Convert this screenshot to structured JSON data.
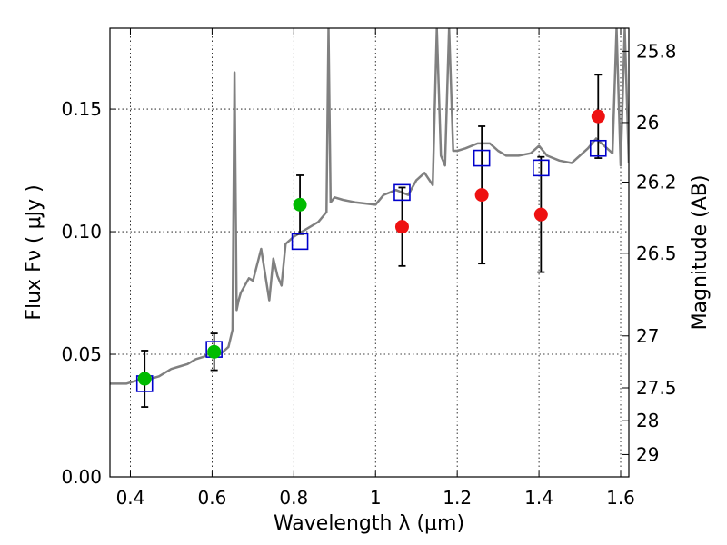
{
  "chart_data": {
    "type": "scatter",
    "xlabel": "Wavelength  λ (μm)",
    "ylabel": "Flux  Fν  ( μJy )",
    "y2label": "Magnitude (AB)",
    "xlim": [
      0.35,
      1.62
    ],
    "ylim": [
      0.0,
      0.183
    ],
    "x_ticks": [
      0.4,
      0.6,
      0.8,
      1.0,
      1.2,
      1.4,
      1.6
    ],
    "x_tick_labels": [
      "0.4",
      "0.6",
      "0.8",
      "1",
      "1.2",
      "1.4",
      "1.6"
    ],
    "y_ticks": [
      0.0,
      0.05,
      0.1,
      0.15
    ],
    "y_tick_labels": [
      "0.00",
      "0.05",
      "0.10",
      "0.15"
    ],
    "y2_ticks": [
      {
        "label": "25.8",
        "flux": 0.1736
      },
      {
        "label": "26",
        "flux": 0.1445
      },
      {
        "label": "26.2",
        "flux": 0.1202
      },
      {
        "label": "26.5",
        "flux": 0.0912
      },
      {
        "label": "27",
        "flux": 0.0575
      },
      {
        "label": "27.5",
        "flux": 0.0363
      },
      {
        "label": "28",
        "flux": 0.0229
      },
      {
        "label": "29",
        "flux": 0.0091
      }
    ],
    "grid": true,
    "colors": {
      "template": "#808080",
      "model_points": "#0000cc",
      "green_points": "#00bb00",
      "red_points": "#ee1111",
      "errorbars": "#000000"
    },
    "series": [
      {
        "type": "line",
        "x": [
          0.35,
          0.37,
          0.39,
          0.41,
          0.43,
          0.45,
          0.47,
          0.49,
          0.5,
          0.52,
          0.54,
          0.56,
          0.58,
          0.6,
          0.62,
          0.64,
          0.65,
          0.655,
          0.66,
          0.665,
          0.67,
          0.68,
          0.69,
          0.7,
          0.72,
          0.74,
          0.75,
          0.76,
          0.77,
          0.78,
          0.8,
          0.82,
          0.84,
          0.86,
          0.88,
          0.885,
          0.89,
          0.9,
          0.92,
          0.95,
          1.0,
          1.02,
          1.05,
          1.08,
          1.1,
          1.12,
          1.14,
          1.15,
          1.16,
          1.17,
          1.18,
          1.19,
          1.2,
          1.22,
          1.25,
          1.28,
          1.3,
          1.32,
          1.35,
          1.38,
          1.4,
          1.42,
          1.45,
          1.48,
          1.5,
          1.52,
          1.54,
          1.56,
          1.58,
          1.59,
          1.6,
          1.61,
          1.62
        ],
        "y": [
          0.038,
          0.038,
          0.038,
          0.039,
          0.04,
          0.04,
          0.041,
          0.043,
          0.044,
          0.045,
          0.046,
          0.048,
          0.049,
          0.051,
          0.05,
          0.053,
          0.06,
          0.165,
          0.068,
          0.072,
          0.075,
          0.078,
          0.081,
          0.08,
          0.093,
          0.072,
          0.089,
          0.082,
          0.078,
          0.095,
          0.098,
          0.1,
          0.102,
          0.104,
          0.108,
          0.183,
          0.112,
          0.114,
          0.113,
          0.112,
          0.111,
          0.115,
          0.117,
          0.115,
          0.121,
          0.124,
          0.119,
          0.183,
          0.131,
          0.127,
          0.183,
          0.133,
          0.133,
          0.134,
          0.136,
          0.136,
          0.133,
          0.131,
          0.131,
          0.132,
          0.135,
          0.131,
          0.129,
          0.128,
          0.131,
          0.134,
          0.138,
          0.135,
          0.132,
          0.183,
          0.127,
          0.183,
          0.128
        ]
      },
      {
        "type": "open_squares",
        "x": [
          0.435,
          0.605,
          0.815,
          1.065,
          1.26,
          1.405,
          1.545
        ],
        "y": [
          0.038,
          0.052,
          0.096,
          0.116,
          0.13,
          0.126,
          0.134
        ]
      },
      {
        "type": "green_points",
        "x": [
          0.435,
          0.605,
          0.815
        ],
        "y": [
          0.04,
          0.051,
          0.111
        ],
        "yerr": [
          0.0115,
          0.0075,
          0.012
        ]
      },
      {
        "type": "red_points",
        "x": [
          1.065,
          1.26,
          1.405,
          1.545
        ],
        "y": [
          0.102,
          0.115,
          0.107,
          0.147
        ],
        "yerr": [
          0.016,
          0.028,
          0.0235,
          0.017
        ]
      }
    ]
  }
}
